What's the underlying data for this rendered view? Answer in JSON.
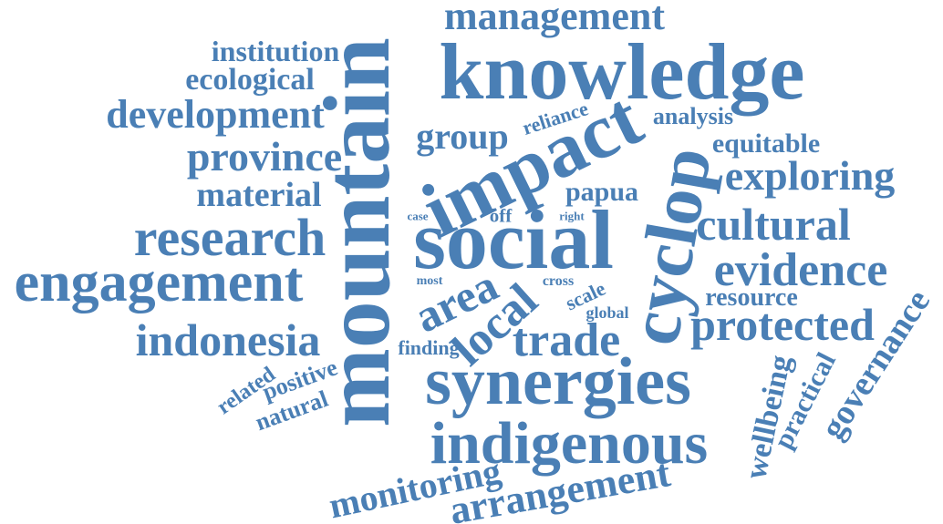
{
  "color": "#4a7fb5",
  "words": [
    {
      "text": "management"
    },
    {
      "text": "knowledge"
    },
    {
      "text": "institution"
    },
    {
      "text": "ecological"
    },
    {
      "text": "development"
    },
    {
      "text": "province"
    },
    {
      "text": "material"
    },
    {
      "text": "research"
    },
    {
      "text": "engagement"
    },
    {
      "text": "indonesia"
    },
    {
      "text": "mountain"
    },
    {
      "text": "social"
    },
    {
      "text": "impact"
    },
    {
      "text": "group"
    },
    {
      "text": "reliance"
    },
    {
      "text": "analysis"
    },
    {
      "text": "equitable"
    },
    {
      "text": "cyclop"
    },
    {
      "text": "exploring"
    },
    {
      "text": "cultural"
    },
    {
      "text": "evidence"
    },
    {
      "text": "papua"
    },
    {
      "text": "case"
    },
    {
      "text": "off"
    },
    {
      "text": "right"
    },
    {
      "text": "most"
    },
    {
      "text": "cross"
    },
    {
      "text": "scale"
    },
    {
      "text": "global"
    },
    {
      "text": "area"
    },
    {
      "text": "local"
    },
    {
      "text": "resource"
    },
    {
      "text": "protected"
    },
    {
      "text": "trade"
    },
    {
      "text": "finding"
    },
    {
      "text": "related"
    },
    {
      "text": "positive"
    },
    {
      "text": "natural"
    },
    {
      "text": "synergies"
    },
    {
      "text": "wellbeing"
    },
    {
      "text": "practical"
    },
    {
      "text": "governance"
    },
    {
      "text": "indigenous"
    },
    {
      "text": "monitoring"
    },
    {
      "text": "arrangement"
    }
  ]
}
